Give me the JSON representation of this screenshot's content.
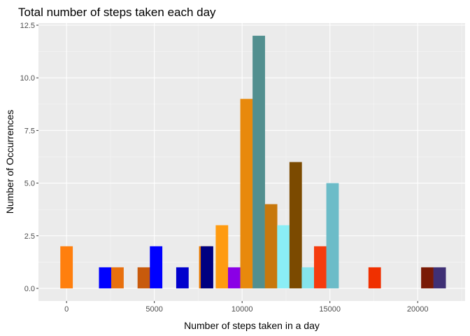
{
  "chart_data": {
    "type": "bar",
    "title": "Total number of steps taken each day",
    "xlabel": "Number of steps taken in a day",
    "ylabel": "Number of Occurrences",
    "xlim": [
      -1600,
      22700
    ],
    "ylim": [
      -0.6,
      12.6
    ],
    "x_ticks": [
      0,
      5000,
      10000,
      15000,
      20000
    ],
    "y_ticks": [
      0.0,
      2.5,
      5.0,
      7.5,
      10.0,
      12.5
    ],
    "x_tick_labels": [
      "0",
      "5000",
      "10000",
      "15000",
      "20000"
    ],
    "y_tick_labels": [
      "0.0",
      "2.5",
      "5.0",
      "7.5",
      "10.0",
      "12.5"
    ],
    "bin_width": 710,
    "grid": true,
    "legend": "none",
    "bars": [
      {
        "x": 0,
        "count": 2,
        "color": "#FF7F0E"
      },
      {
        "x": 2200,
        "count": 1,
        "color": "#0000FF"
      },
      {
        "x": 2900,
        "count": 1,
        "color": "#E8700E"
      },
      {
        "x": 4400,
        "count": 1,
        "color": "#C85A0C"
      },
      {
        "x": 5100,
        "count": 2,
        "color": "#0000FF"
      },
      {
        "x": 6600,
        "count": 1,
        "color": "#0000CD"
      },
      {
        "x": 7900,
        "count": 2,
        "color": "#E87A00"
      },
      {
        "x": 8000,
        "count": 2,
        "color": "#000080"
      },
      {
        "x": 8850,
        "count": 3,
        "color": "#FF9B10"
      },
      {
        "x": 9550,
        "count": 1,
        "color": "#8A00E6"
      },
      {
        "x": 10250,
        "count": 9,
        "color": "#E8890C"
      },
      {
        "x": 10950,
        "count": 12,
        "color": "#528F8F"
      },
      {
        "x": 11650,
        "count": 4,
        "color": "#C8780C"
      },
      {
        "x": 12350,
        "count": 3,
        "color": "#8AEEF5"
      },
      {
        "x": 13050,
        "count": 6,
        "color": "#7B4A00"
      },
      {
        "x": 13750,
        "count": 1,
        "color": "#85E4EC"
      },
      {
        "x": 14450,
        "count": 2,
        "color": "#F53C0E"
      },
      {
        "x": 15150,
        "count": 5,
        "color": "#6CBCC8"
      },
      {
        "x": 17550,
        "count": 1,
        "color": "#F03000"
      },
      {
        "x": 20550,
        "count": 1,
        "color": "#7A1A05"
      },
      {
        "x": 21250,
        "count": 1,
        "color": "#3F3075"
      }
    ]
  }
}
